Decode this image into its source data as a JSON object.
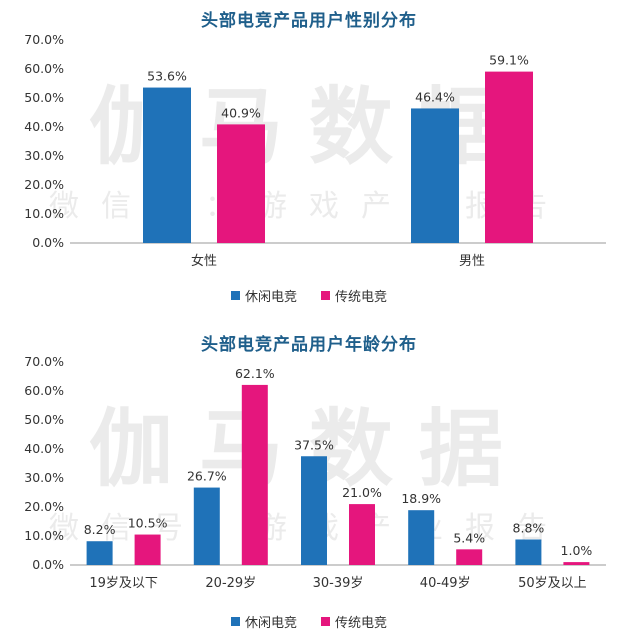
{
  "watermark": {
    "main": "伽马数据",
    "sub": "微信号：游戏产业报告"
  },
  "colors": {
    "series1": "#1f72b8",
    "series2": "#e5167d",
    "axis": "#999999",
    "title": "#1f5f8b"
  },
  "chart_data": [
    {
      "type": "bar",
      "title": "头部电竞产品用户性别分布",
      "categories": [
        "女性",
        "男性"
      ],
      "series": [
        {
          "name": "休闲电竞",
          "values": [
            53.6,
            46.4
          ]
        },
        {
          "name": "传统电竞",
          "values": [
            40.9,
            59.1
          ]
        }
      ],
      "value_labels": [
        [
          "53.6%",
          "46.4%"
        ],
        [
          "40.9%",
          "59.1%"
        ]
      ],
      "yticks": [
        "0.0%",
        "10.0%",
        "20.0%",
        "30.0%",
        "40.0%",
        "50.0%",
        "60.0%",
        "70.0%"
      ],
      "ylim": [
        0,
        70
      ],
      "legend": "bottom",
      "grid": false
    },
    {
      "type": "bar",
      "title": "头部电竞产品用户年龄分布",
      "categories": [
        "19岁及以下",
        "20-29岁",
        "30-39岁",
        "40-49岁",
        "50岁及以上"
      ],
      "series": [
        {
          "name": "休闲电竞",
          "values": [
            8.2,
            26.7,
            37.5,
            18.9,
            8.8
          ]
        },
        {
          "name": "传统电竞",
          "values": [
            10.5,
            62.1,
            21.0,
            5.4,
            1.0
          ]
        }
      ],
      "value_labels": [
        [
          "8.2%",
          "26.7%",
          "37.5%",
          "18.9%",
          "8.8%"
        ],
        [
          "10.5%",
          "62.1%",
          "21.0%",
          "5.4%",
          "1.0%"
        ]
      ],
      "yticks": [
        "0.0%",
        "10.0%",
        "20.0%",
        "30.0%",
        "40.0%",
        "50.0%",
        "60.0%",
        "70.0%"
      ],
      "ylim": [
        0,
        70
      ],
      "legend": "bottom",
      "grid": false
    }
  ]
}
